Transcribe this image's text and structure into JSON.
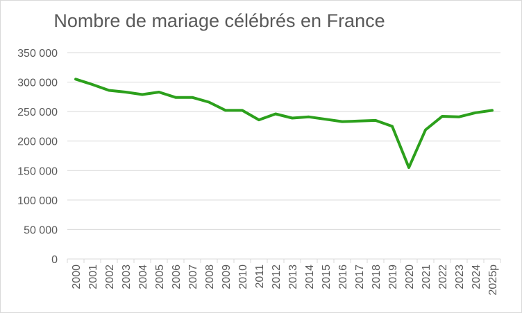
{
  "chart_data": {
    "type": "line",
    "title": "Nombre de mariage célébrés en France",
    "xlabel": "",
    "ylabel": "",
    "categories": [
      "2000",
      "2001",
      "2002",
      "2003",
      "2004",
      "2005",
      "2006",
      "2007",
      "2008",
      "2009",
      "2010",
      "2011",
      "2012",
      "2013",
      "2014",
      "2015",
      "2016",
      "2017",
      "2018",
      "2019",
      "2020",
      "2021",
      "2022",
      "2023",
      "2024",
      "2025p"
    ],
    "series": [
      {
        "values": [
          305000,
          296000,
          286000,
          283000,
          279000,
          283000,
          274000,
          274000,
          266000,
          252000,
          252000,
          236000,
          246000,
          239000,
          241000,
          237000,
          233000,
          234000,
          235000,
          225000,
          155000,
          219000,
          242000,
          241000,
          248000,
          252000
        ]
      }
    ],
    "ylim": [
      0,
      350000
    ],
    "yticks": [
      0,
      50000,
      100000,
      150000,
      200000,
      250000,
      300000,
      350000
    ],
    "ytick_labels": [
      "0",
      "50 000",
      "100 000",
      "150 000",
      "200 000",
      "250 000",
      "300 000",
      "350 000"
    ],
    "grid": true,
    "legend": "none",
    "colors": {
      "line": "#2ca01c",
      "grid": "#d9d9d9",
      "text": "#595959"
    }
  }
}
